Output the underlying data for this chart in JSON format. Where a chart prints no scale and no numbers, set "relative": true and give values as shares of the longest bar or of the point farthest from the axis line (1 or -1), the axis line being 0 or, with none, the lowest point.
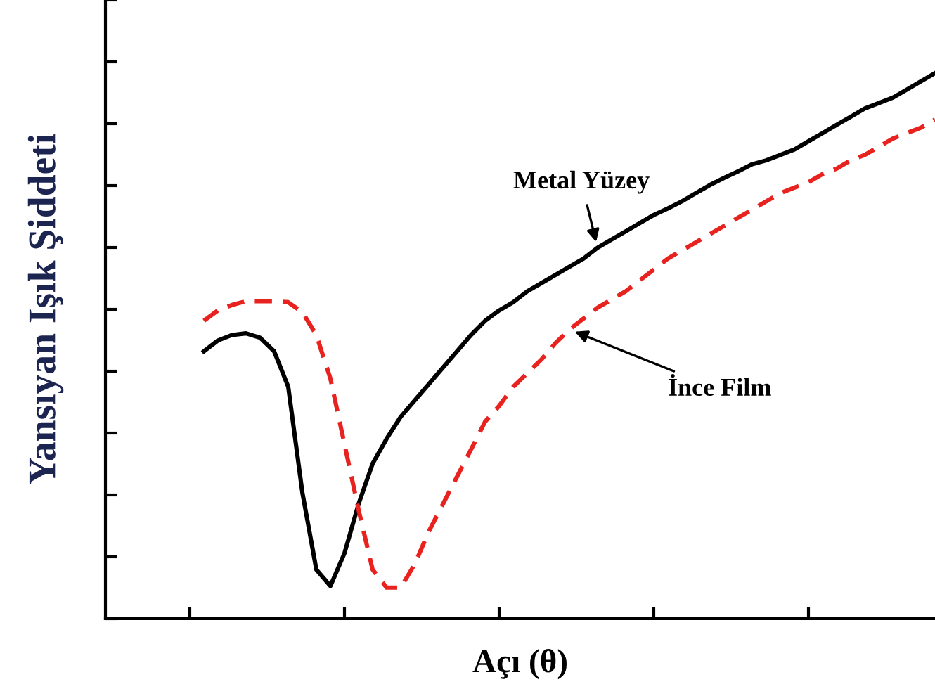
{
  "chart_data": {
    "type": "line",
    "relative": true,
    "xlabel": "Açı (θ)",
    "ylabel": "Yansıyan Işık Şiddeti",
    "categories": [
      null,
      null,
      null,
      null,
      null,
      null,
      null,
      null,
      null,
      null,
      null,
      null,
      null,
      null,
      null,
      null,
      null,
      null,
      null,
      null,
      null,
      null,
      null,
      null,
      null,
      null,
      null,
      null,
      null,
      null,
      null,
      null,
      null,
      null,
      null,
      null,
      null,
      null,
      null,
      null,
      null,
      null,
      null,
      null,
      null,
      null,
      null,
      null,
      null,
      null,
      null,
      null,
      null
    ],
    "series": [
      {
        "color": "#000000",
        "line_style": "solid",
        "values": [
          0.49,
          0.51,
          0.52,
          0.523,
          0.515,
          0.49,
          0.425,
          0.232,
          0.09,
          0.06,
          0.12,
          0.21,
          0.284,
          0.33,
          0.37,
          0.4,
          0.43,
          0.46,
          0.49,
          0.52,
          0.546,
          0.565,
          0.58,
          0.6,
          0.615,
          0.63,
          0.645,
          0.66,
          0.68,
          0.695,
          0.71,
          0.725,
          0.74,
          0.752,
          0.765,
          0.78,
          0.795,
          0.808,
          0.82,
          0.833,
          0.84,
          0.85,
          0.86,
          0.875,
          0.89,
          0.905,
          0.92,
          0.935,
          0.945,
          0.955,
          0.97,
          0.985,
          1.0
        ]
      },
      {
        "color": "#e8221e",
        "line_style": "dashed",
        "values": [
          0.546,
          0.565,
          0.575,
          0.582,
          0.582,
          0.582,
          0.58,
          0.562,
          0.52,
          0.44,
          0.32,
          0.2,
          0.09,
          0.057,
          0.057,
          0.1,
          0.16,
          0.21,
          0.26,
          0.31,
          0.361,
          0.39,
          0.425,
          0.45,
          0.475,
          0.505,
          0.53,
          0.55,
          0.57,
          0.585,
          0.6,
          0.62,
          0.64,
          0.66,
          0.675,
          0.69,
          0.705,
          0.72,
          0.735,
          0.75,
          0.765,
          0.78,
          0.79,
          0.8,
          0.815,
          0.825,
          0.84,
          0.85,
          0.865,
          0.88,
          0.89,
          0.9,
          0.915
        ]
      }
    ],
    "annotations": [
      "Metal Yüzey",
      "İnce Film"
    ],
    "grid": false,
    "marker": "none"
  }
}
